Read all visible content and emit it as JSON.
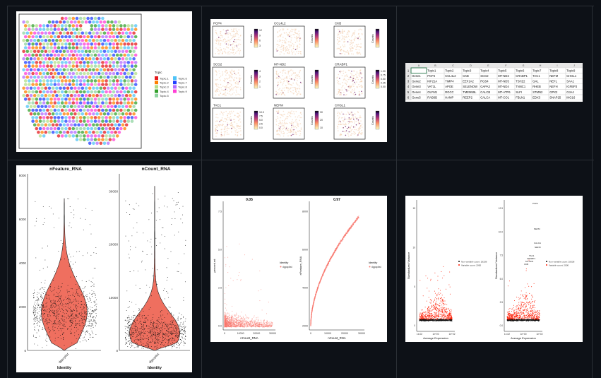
{
  "spatial": {
    "legend_title": "Topic",
    "legend": [
      {
        "label": "Topic.1",
        "color": "#e41a1c"
      },
      {
        "label": "Topic.2",
        "color": "#ff7f00"
      },
      {
        "label": "Topic.3",
        "color": "#b2df8a"
      },
      {
        "label": "Topic.4",
        "color": "#33a02c"
      },
      {
        "label": "Topic.5",
        "color": "#8fd4a0"
      },
      {
        "label": "Topic.6",
        "color": "#4fc3f7"
      },
      {
        "label": "Topic.7",
        "color": "#1f3fff"
      },
      {
        "label": "Topic.8",
        "color": "#b36bff"
      },
      {
        "label": "Topic.9",
        "color": "#ff3fd5"
      }
    ]
  },
  "gene_maps": {
    "panels": [
      {
        "gene": "PCP4",
        "scale_label": "Counts",
        "ticks": [
          "12",
          "9",
          "6",
          "3"
        ]
      },
      {
        "gene": "CCL4L2",
        "scale_label": "Counts",
        "ticks": [
          "",
          "",
          "",
          ""
        ]
      },
      {
        "gene": "CKB",
        "scale_label": "Counts",
        "ticks": [
          "",
          "",
          "",
          ""
        ]
      },
      {
        "gene": "SCG2",
        "scale_label": "Counts",
        "ticks": [
          "4",
          "3",
          "2",
          "1"
        ]
      },
      {
        "gene": "MT-ND2",
        "scale_label": "Counts",
        "ticks": [
          "",
          "",
          "",
          ""
        ]
      },
      {
        "gene": "CRABP1",
        "scale_label": "Counts",
        "ticks": [
          "1.00",
          "0.75",
          "0.50",
          "0.25",
          "0.00"
        ]
      },
      {
        "gene": "TAC1",
        "scale_label": "Counts",
        "ticks": [
          "10.0",
          "7.5",
          "5.0",
          "2.5",
          "0.0"
        ]
      },
      {
        "gene": "NEFM",
        "scale_label": "Counts",
        "ticks": [
          "30",
          "20",
          "10"
        ]
      },
      {
        "gene": "CHGL1",
        "scale_label": "Counts",
        "ticks": [
          "",
          "",
          "",
          ""
        ]
      }
    ]
  },
  "sheet": {
    "columns": [
      "",
      "A",
      "B",
      "C",
      "D",
      "E",
      "F",
      "G",
      "H",
      "I",
      "J"
    ],
    "rows": [
      [
        "1",
        "",
        "Topic1",
        "Topic2",
        "Topic3",
        "Topic4",
        "Topic5",
        "Topic6",
        "Topic7",
        "Topic8",
        "Topic9"
      ],
      [
        "2",
        "Gene1",
        "PCP4",
        "CCL4L2",
        "CKB",
        "SCG2",
        "MT-ND2",
        "CRABP1",
        "TAC1",
        "NEFM",
        "CHGL1"
      ],
      [
        "3",
        "Gene2",
        "KIF21A",
        "TIMP4",
        "EEF1A2",
        "RGS4",
        "MT-ND5",
        "TSHZ2",
        "GAL",
        "NEFL",
        "SAA1"
      ],
      [
        "4",
        "Gene3",
        "VAT1L",
        "APOE",
        "SELENOW",
        "GAPA3",
        "MT-ND4",
        "TNNC1",
        "RHEB",
        "NEFH",
        "IGFBP3"
      ],
      [
        "5",
        "Gene4",
        "OLFM1",
        "RGCC",
        "TMEM59L",
        "CALCB",
        "MT-ATP6",
        "SLFI",
        "STMN2",
        "GPX2",
        "GJA4"
      ],
      [
        "6",
        "Gene5",
        "RAB6B",
        "HAMP",
        "REEP2",
        "CALCA",
        "MT-CO1",
        "FBLN1",
        "EDX3",
        "SNAP25",
        "ING16"
      ]
    ]
  },
  "chart_data": [
    {
      "type": "scatter",
      "title": "nFeature_RNA",
      "xlabel": "Identity",
      "ylabel": "",
      "categories": [
        "dgpoplist"
      ],
      "ylim": [
        0,
        8000
      ],
      "yticks": [
        "0",
        "2000",
        "4000",
        "6000",
        "8000"
      ]
    },
    {
      "type": "scatter",
      "title": "nCount_RNA",
      "xlabel": "Identity",
      "ylabel": "",
      "categories": [
        "dgpoplist"
      ],
      "ylim": [
        0,
        33000
      ],
      "yticks": [
        "0",
        "10000",
        "20000",
        "30000"
      ]
    },
    {
      "type": "scatter",
      "title": "0.05",
      "xlabel": "nCount_RNA",
      "ylabel": "percent.mt",
      "xticks": [
        "0",
        "10000",
        "20000",
        "30000"
      ],
      "yticks": [
        "0.0",
        "2.5",
        "5.0",
        "7.5"
      ],
      "legend_title": "Identity",
      "series": [
        {
          "name": "dgpoplist",
          "color": "#f8766d"
        }
      ]
    },
    {
      "type": "scatter",
      "title": "0.97",
      "xlabel": "nCount_RNA",
      "ylabel": "nFeature_RNA",
      "xticks": [
        "0",
        "10000",
        "20000",
        "30000"
      ],
      "yticks": [
        "2000",
        "4000",
        "6000",
        "8000"
      ],
      "legend_title": "Identity",
      "series": [
        {
          "name": "dgpoplist",
          "color": "#f8766d"
        }
      ]
    },
    {
      "type": "scatter",
      "xlabel": "Average Expression",
      "ylabel": "Standardized Variance",
      "xticks": [
        "1e-02",
        "1e+00",
        "1e+02"
      ],
      "yticks": [
        "0",
        "5",
        "10",
        "15"
      ],
      "legend": [
        "Non-variable count: 18338",
        "Variable count: 2000"
      ]
    },
    {
      "type": "scatter",
      "xlabel": "Average Expression",
      "ylabel": "Standardized Variance",
      "xticks": [
        "1e-02",
        "1e+00",
        "1e+02"
      ],
      "yticks": [
        "0.0",
        "2.5",
        "5.0",
        "7.5",
        "10.0",
        "12.5"
      ],
      "legend": [
        "Non-variable count: 18338",
        "Variable count: 2000"
      ],
      "labels": [
        "PCP4",
        "NEFM",
        "CALCA",
        "NEFM",
        "TAC1",
        "CRABP1",
        "MT-ND2",
        "CKB"
      ]
    }
  ]
}
